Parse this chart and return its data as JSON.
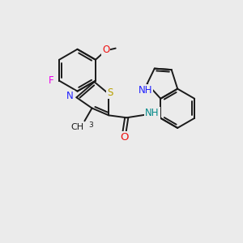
{
  "bg": "#ebebeb",
  "bc": "#1a1a1a",
  "bw": 1.4,
  "fs": 8.5,
  "colors": {
    "S": "#b8a000",
    "N_thiazole": "#2020ff",
    "N_indole": "#2020ff",
    "O": "#ee1111",
    "F": "#ee00ee",
    "NH_amide": "#008888",
    "NH_indole": "#2020ff"
  },
  "xlim": [
    0,
    10
  ],
  "ylim": [
    0,
    10
  ]
}
